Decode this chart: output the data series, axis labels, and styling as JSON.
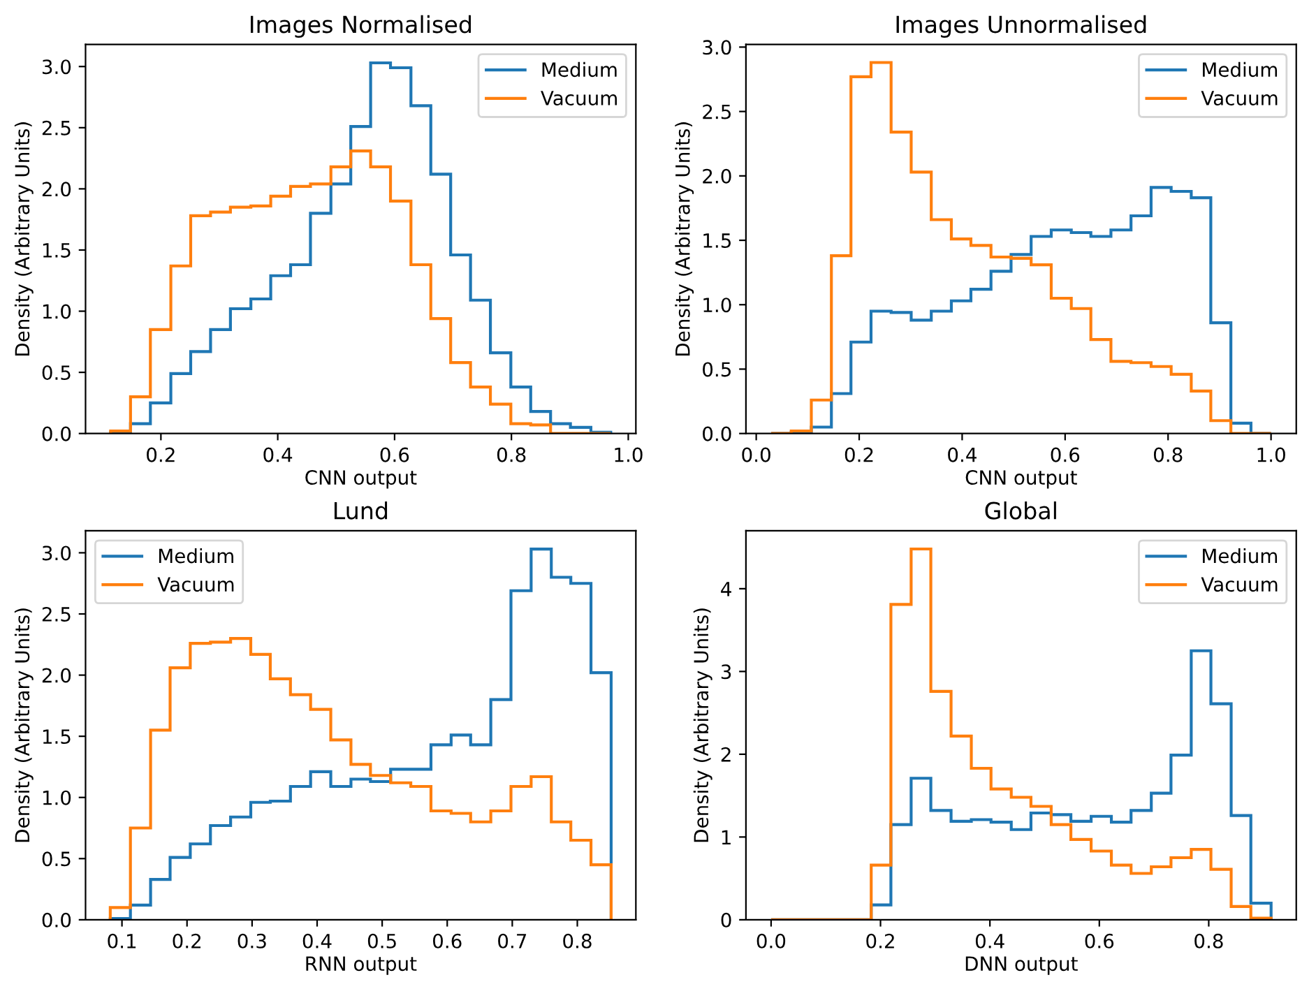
{
  "chart_data": [
    {
      "type": "histogram",
      "title": "Images Normalised",
      "xlabel": "CNN output",
      "ylabel": "Density (Arbitrary Units)",
      "legend": "top right",
      "grid": false,
      "bins": [
        0.114,
        0.148,
        0.182,
        0.217,
        0.251,
        0.285,
        0.319,
        0.354,
        0.388,
        0.422,
        0.456,
        0.491,
        0.525,
        0.559,
        0.593,
        0.628,
        0.662,
        0.696,
        0.73,
        0.764,
        0.799,
        0.833,
        0.867,
        0.901,
        0.936,
        0.97
      ],
      "series": [
        {
          "name": "Medium",
          "color": "#1f77b4",
          "values": [
            0.01,
            0.08,
            0.25,
            0.49,
            0.67,
            0.85,
            1.02,
            1.1,
            1.29,
            1.38,
            1.8,
            2.04,
            2.51,
            3.03,
            2.99,
            2.68,
            2.12,
            1.46,
            1.09,
            0.66,
            0.38,
            0.18,
            0.08,
            0.05,
            0.01
          ]
        },
        {
          "name": "Vacuum",
          "color": "#ff7f0e",
          "values": [
            0.02,
            0.3,
            0.85,
            1.37,
            1.78,
            1.81,
            1.85,
            1.86,
            1.94,
            2.02,
            2.04,
            2.18,
            2.31,
            2.18,
            1.9,
            1.38,
            0.94,
            0.58,
            0.38,
            0.24,
            0.08,
            0.07,
            0.0,
            0.0,
            0.0
          ]
        }
      ],
      "xlim": [
        0.071,
        1.013
      ],
      "ylim": [
        0,
        3.18
      ],
      "xticks": [
        {
          "value": 0.2,
          "label": "0.2"
        },
        {
          "value": 0.4,
          "label": "0.4"
        },
        {
          "value": 0.6,
          "label": "0.6"
        },
        {
          "value": 0.8,
          "label": "0.8"
        },
        {
          "value": 1.0,
          "label": "1.0"
        }
      ],
      "yticks": [
        {
          "value": 0,
          "label": "0.0"
        },
        {
          "value": 0.5,
          "label": "0.5"
        },
        {
          "value": 1.0,
          "label": "1.0"
        },
        {
          "value": 1.5,
          "label": "1.5"
        },
        {
          "value": 2.0,
          "label": "2.0"
        },
        {
          "value": 2.5,
          "label": "2.5"
        },
        {
          "value": 3.0,
          "label": "3.0"
        }
      ]
    },
    {
      "type": "histogram",
      "title": "Images Unnormalised",
      "xlabel": "CNN output",
      "ylabel": "Density (Arbitrary Units)",
      "legend": "top right",
      "grid": false,
      "bins": [
        0.029,
        0.068,
        0.107,
        0.146,
        0.184,
        0.223,
        0.262,
        0.301,
        0.34,
        0.379,
        0.417,
        0.456,
        0.495,
        0.534,
        0.573,
        0.612,
        0.65,
        0.689,
        0.728,
        0.767,
        0.806,
        0.845,
        0.883,
        0.922,
        0.961,
        1.0
      ],
      "series": [
        {
          "name": "Medium",
          "color": "#1f77b4",
          "values": [
            0.0,
            0.01,
            0.05,
            0.31,
            0.71,
            0.95,
            0.94,
            0.88,
            0.95,
            1.03,
            1.12,
            1.26,
            1.39,
            1.53,
            1.58,
            1.56,
            1.53,
            1.58,
            1.69,
            1.91,
            1.88,
            1.83,
            0.86,
            0.08,
            0.0
          ]
        },
        {
          "name": "Vacuum",
          "color": "#ff7f0e",
          "values": [
            0.0,
            0.02,
            0.26,
            1.38,
            2.77,
            2.88,
            2.34,
            2.03,
            1.66,
            1.51,
            1.46,
            1.37,
            1.36,
            1.31,
            1.05,
            0.97,
            0.73,
            0.56,
            0.55,
            0.52,
            0.46,
            0.33,
            0.1,
            0.0,
            0.0
          ]
        }
      ],
      "xlim": [
        -0.02,
        1.049
      ],
      "ylim": [
        0,
        3.02
      ],
      "xticks": [
        {
          "value": 0.0,
          "label": "0.0"
        },
        {
          "value": 0.2,
          "label": "0.2"
        },
        {
          "value": 0.4,
          "label": "0.4"
        },
        {
          "value": 0.6,
          "label": "0.6"
        },
        {
          "value": 0.8,
          "label": "0.8"
        },
        {
          "value": 1.0,
          "label": "1.0"
        }
      ],
      "yticks": [
        {
          "value": 0,
          "label": "0.0"
        },
        {
          "value": 0.5,
          "label": "0.5"
        },
        {
          "value": 1.0,
          "label": "1.0"
        },
        {
          "value": 1.5,
          "label": "1.5"
        },
        {
          "value": 2.0,
          "label": "2.0"
        },
        {
          "value": 2.5,
          "label": "2.5"
        },
        {
          "value": 3.0,
          "label": "3.0"
        }
      ]
    },
    {
      "type": "histogram",
      "title": "Lund",
      "xlabel": "RNN output",
      "ylabel": "Density (Arbitrary Units)",
      "legend": "top left",
      "grid": false,
      "bins": [
        0.082,
        0.113,
        0.144,
        0.174,
        0.205,
        0.236,
        0.267,
        0.298,
        0.328,
        0.359,
        0.39,
        0.421,
        0.452,
        0.482,
        0.513,
        0.544,
        0.575,
        0.606,
        0.636,
        0.667,
        0.698,
        0.729,
        0.76,
        0.79,
        0.821,
        0.852
      ],
      "series": [
        {
          "name": "Medium",
          "color": "#1f77b4",
          "values": [
            0.01,
            0.12,
            0.33,
            0.51,
            0.62,
            0.77,
            0.84,
            0.96,
            0.97,
            1.09,
            1.21,
            1.09,
            1.15,
            1.13,
            1.23,
            1.23,
            1.43,
            1.51,
            1.43,
            1.8,
            2.69,
            3.03,
            2.8,
            2.75,
            2.02
          ]
        },
        {
          "name": "Vacuum",
          "color": "#ff7f0e",
          "values": [
            0.1,
            0.75,
            1.55,
            2.06,
            2.26,
            2.27,
            2.3,
            2.17,
            1.97,
            1.84,
            1.72,
            1.47,
            1.27,
            1.18,
            1.12,
            1.09,
            0.89,
            0.87,
            0.8,
            0.89,
            1.09,
            1.17,
            0.8,
            0.65,
            0.45
          ]
        }
      ],
      "xlim": [
        0.044,
        0.89
      ],
      "ylim": [
        0,
        3.18
      ],
      "xticks": [
        {
          "value": 0.1,
          "label": "0.1"
        },
        {
          "value": 0.2,
          "label": "0.2"
        },
        {
          "value": 0.3,
          "label": "0.3"
        },
        {
          "value": 0.4,
          "label": "0.4"
        },
        {
          "value": 0.5,
          "label": "0.5"
        },
        {
          "value": 0.6,
          "label": "0.6"
        },
        {
          "value": 0.7,
          "label": "0.7"
        },
        {
          "value": 0.8,
          "label": "0.8"
        }
      ],
      "yticks": [
        {
          "value": 0,
          "label": "0.0"
        },
        {
          "value": 0.5,
          "label": "0.5"
        },
        {
          "value": 1.0,
          "label": "1.0"
        },
        {
          "value": 1.5,
          "label": "1.5"
        },
        {
          "value": 2.0,
          "label": "2.0"
        },
        {
          "value": 2.5,
          "label": "2.5"
        },
        {
          "value": 3.0,
          "label": "3.0"
        }
      ]
    },
    {
      "type": "histogram",
      "title": "Global",
      "xlabel": "DNN output",
      "ylabel": "Density (Arbitrary Units)",
      "legend": "top right",
      "grid": false,
      "bins": [
        0.0,
        0.037,
        0.073,
        0.11,
        0.146,
        0.183,
        0.219,
        0.256,
        0.292,
        0.329,
        0.366,
        0.402,
        0.439,
        0.475,
        0.512,
        0.548,
        0.585,
        0.622,
        0.658,
        0.695,
        0.731,
        0.768,
        0.804,
        0.841,
        0.877,
        0.914
      ],
      "series": [
        {
          "name": "Medium",
          "color": "#1f77b4",
          "values": [
            0,
            0,
            0,
            0,
            0,
            0.18,
            1.15,
            1.71,
            1.32,
            1.19,
            1.21,
            1.18,
            1.09,
            1.29,
            1.27,
            1.19,
            1.25,
            1.18,
            1.32,
            1.53,
            1.99,
            3.25,
            2.61,
            1.26,
            0.2
          ]
        },
        {
          "name": "Vacuum",
          "color": "#ff7f0e",
          "values": [
            0,
            0,
            0,
            0,
            0,
            0.66,
            3.81,
            4.48,
            2.76,
            2.22,
            1.83,
            1.58,
            1.48,
            1.37,
            1.15,
            0.97,
            0.83,
            0.66,
            0.56,
            0.64,
            0.75,
            0.85,
            0.61,
            0.16,
            0.02
          ]
        }
      ],
      "xlim": [
        -0.046,
        0.96
      ],
      "ylim": [
        0,
        4.7
      ],
      "xticks": [
        {
          "value": 0.0,
          "label": "0.0"
        },
        {
          "value": 0.2,
          "label": "0.2"
        },
        {
          "value": 0.4,
          "label": "0.4"
        },
        {
          "value": 0.6,
          "label": "0.6"
        },
        {
          "value": 0.8,
          "label": "0.8"
        }
      ],
      "yticks": [
        0,
        1,
        2,
        3,
        4
      ]
    }
  ]
}
